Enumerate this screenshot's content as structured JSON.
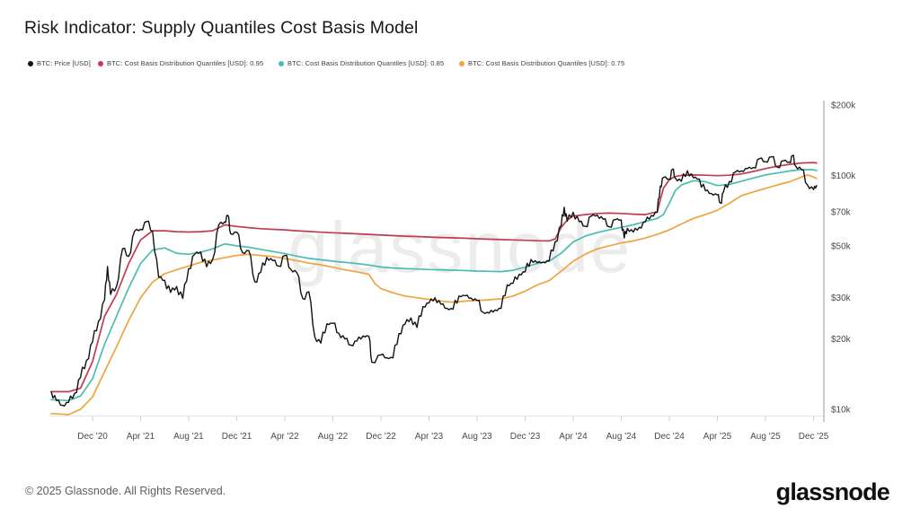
{
  "header": {
    "title": "Risk Indicator: Supply Quantiles Cost Basis Model"
  },
  "legend": [
    {
      "label": "BTC: Price [USD]",
      "color": "#111111"
    },
    {
      "label": "BTC: Cost Basis Distribution Quantiles [USD]: 0.95",
      "color": "#c13b54"
    },
    {
      "label": "BTC: Cost Basis Distribution Quantiles [USD]: 0.85",
      "color": "#4abdb0"
    },
    {
      "label": "BTC: Cost Basis Distribution Quantiles [USD]: 0.75",
      "color": "#f0a33f"
    }
  ],
  "watermark": "glassnode",
  "footer": {
    "copyright": "© 2025 Glassnode. All Rights Reserved.",
    "brand": "glassnode"
  },
  "chart_data": {
    "type": "line",
    "title": "Risk Indicator: Supply Quantiles Cost Basis Model",
    "y_axis": {
      "scale": "log",
      "unit": "USD (thousands)",
      "min": 10,
      "max": 200,
      "position": "right",
      "ticks": [
        {
          "label": "$200k",
          "value": 200
        },
        {
          "label": "$100k",
          "value": 100
        },
        {
          "label": "$70k",
          "value": 70
        },
        {
          "label": "$50k",
          "value": 50
        },
        {
          "label": "$30k",
          "value": 30
        },
        {
          "label": "$20k",
          "value": 20
        },
        {
          "label": "$10k",
          "value": 10
        }
      ]
    },
    "x_axis": {
      "unit": "date (decimal year)",
      "ticks": [
        {
          "label": "Dec '20",
          "year": 2020.917
        },
        {
          "label": "Apr '21",
          "year": 2021.25
        },
        {
          "label": "Aug '21",
          "year": 2021.583
        },
        {
          "label": "Dec '21",
          "year": 2021.917
        },
        {
          "label": "Apr '22",
          "year": 2022.25
        },
        {
          "label": "Aug '22",
          "year": 2022.583
        },
        {
          "label": "Dec '22",
          "year": 2022.917
        },
        {
          "label": "Apr '23",
          "year": 2023.25
        },
        {
          "label": "Aug '23",
          "year": 2023.583
        },
        {
          "label": "Dec '23",
          "year": 2023.917
        },
        {
          "label": "Apr '24",
          "year": 2024.25
        },
        {
          "label": "Aug '24",
          "year": 2024.583
        },
        {
          "label": "Dec '24",
          "year": 2024.917
        },
        {
          "label": "Apr '25",
          "year": 2025.25
        },
        {
          "label": "Aug '25",
          "year": 2025.583
        },
        {
          "label": "Dec '25",
          "year": 2025.917
        }
      ]
    },
    "grid": false,
    "legend_position": "top",
    "series": [
      {
        "name": "BTC: Price [USD]",
        "color": "#111111",
        "style": "jagged",
        "width": 1.4,
        "x": [
          2020.63,
          2020.667,
          2020.708,
          2020.75,
          2020.792,
          2020.833,
          2020.875,
          2020.917,
          2020.958,
          2021.0,
          2021.021,
          2021.042,
          2021.083,
          2021.125,
          2021.167,
          2021.208,
          2021.25,
          2021.292,
          2021.333,
          2021.375,
          2021.417,
          2021.458,
          2021.5,
          2021.542,
          2021.583,
          2021.625,
          2021.667,
          2021.708,
          2021.75,
          2021.792,
          2021.833,
          2021.854,
          2021.875,
          2021.917,
          2021.958,
          2022.0,
          2022.042,
          2022.083,
          2022.125,
          2022.167,
          2022.208,
          2022.25,
          2022.292,
          2022.333,
          2022.375,
          2022.417,
          2022.458,
          2022.5,
          2022.542,
          2022.583,
          2022.625,
          2022.667,
          2022.708,
          2022.75,
          2022.792,
          2022.833,
          2022.854,
          2022.917,
          2022.958,
          2023.0,
          2023.042,
          2023.083,
          2023.125,
          2023.167,
          2023.208,
          2023.25,
          2023.292,
          2023.333,
          2023.375,
          2023.417,
          2023.458,
          2023.5,
          2023.542,
          2023.583,
          2023.625,
          2023.667,
          2023.708,
          2023.75,
          2023.792,
          2023.833,
          2023.875,
          2023.917,
          2023.958,
          2024.0,
          2024.042,
          2024.083,
          2024.125,
          2024.167,
          2024.188,
          2024.208,
          2024.25,
          2024.292,
          2024.333,
          2024.375,
          2024.417,
          2024.458,
          2024.5,
          2024.542,
          2024.583,
          2024.604,
          2024.625,
          2024.667,
          2024.708,
          2024.75,
          2024.792,
          2024.833,
          2024.854,
          2024.875,
          2024.917,
          2024.938,
          2024.958,
          2025.0,
          2025.042,
          2025.083,
          2025.125,
          2025.167,
          2025.208,
          2025.25,
          2025.271,
          2025.292,
          2025.333,
          2025.375,
          2025.417,
          2025.458,
          2025.5,
          2025.542,
          2025.583,
          2025.625,
          2025.667,
          2025.708,
          2025.75,
          2025.771,
          2025.792,
          2025.833,
          2025.875,
          2025.917,
          2025.938
        ],
        "values": [
          11.9,
          10.9,
          10.4,
          10.7,
          11.7,
          13.7,
          16.2,
          19.4,
          23.8,
          29.4,
          40.8,
          31.0,
          33.5,
          48.6,
          45.1,
          57.8,
          58.8,
          63.5,
          57.7,
          36.7,
          35.6,
          31.6,
          33.5,
          29.8,
          39.9,
          46.0,
          47.1,
          40.7,
          43.8,
          61.5,
          63.3,
          67.6,
          56.3,
          57.2,
          46.7,
          47.7,
          35.1,
          38.5,
          44.6,
          43.2,
          41.0,
          45.5,
          39.7,
          38.5,
          29.7,
          31.8,
          20.4,
          19.2,
          23.2,
          23.3,
          21.1,
          20.0,
          18.8,
          19.6,
          20.6,
          20.5,
          15.9,
          17.1,
          16.6,
          16.6,
          21.1,
          23.1,
          24.6,
          22.4,
          27.5,
          28.5,
          30.0,
          28.1,
          27.0,
          26.8,
          30.5,
          30.6,
          29.9,
          29.2,
          26.0,
          25.8,
          26.6,
          27.0,
          34.0,
          34.6,
          37.8,
          38.7,
          43.7,
          42.3,
          42.6,
          43.1,
          52.0,
          61.2,
          73.1,
          63.8,
          69.6,
          63.4,
          60.6,
          67.0,
          67.7,
          65.0,
          60.3,
          64.8,
          64.6,
          54.0,
          59.4,
          57.3,
          60.0,
          63.3,
          67.4,
          69.5,
          89.9,
          98.0,
          96.5,
          106.1,
          97.5,
          94.4,
          104.7,
          97.7,
          96.6,
          86.0,
          83.7,
          82.5,
          76.3,
          84.7,
          94.2,
          103.5,
          104.6,
          107.0,
          108.0,
          118.0,
          114.5,
          120.0,
          108.5,
          115.5,
          114.0,
          121.5,
          110.0,
          106.0,
          91.0,
          87.0,
          90.5
        ]
      },
      {
        "name": "BTC: Cost Basis Distribution Quantiles [USD]: 0.95",
        "color": "#c13b54",
        "style": "smooth",
        "width": 1.7,
        "x": [
          2020.63,
          2020.75,
          2020.833,
          2020.917,
          2021.0,
          2021.083,
          2021.167,
          2021.25,
          2021.333,
          2021.417,
          2021.5,
          2021.583,
          2021.667,
          2021.75,
          2021.833,
          2021.917,
          2022.0,
          2022.083,
          2022.167,
          2022.25,
          2022.333,
          2022.417,
          2022.5,
          2022.583,
          2022.667,
          2022.75,
          2022.833,
          2022.917,
          2023.0,
          2023.083,
          2023.167,
          2023.25,
          2023.333,
          2023.417,
          2023.5,
          2023.583,
          2023.667,
          2023.75,
          2023.833,
          2023.917,
          2024.0,
          2024.083,
          2024.125,
          2024.167,
          2024.208,
          2024.25,
          2024.333,
          2024.417,
          2024.5,
          2024.583,
          2024.667,
          2024.75,
          2024.833,
          2024.875,
          2024.917,
          2024.958,
          2025.0,
          2025.083,
          2025.167,
          2025.25,
          2025.333,
          2025.417,
          2025.5,
          2025.583,
          2025.667,
          2025.75,
          2025.833,
          2025.917,
          2025.938
        ],
        "values": [
          11.9,
          11.9,
          12.3,
          16.0,
          25.0,
          31.0,
          42.0,
          53.0,
          58.0,
          58.0,
          57.5,
          57.3,
          57.5,
          58.0,
          61.5,
          60.5,
          59.8,
          59.2,
          58.8,
          58.5,
          58.0,
          57.6,
          57.2,
          56.9,
          56.6,
          56.3,
          56.0,
          55.6,
          55.3,
          55.0,
          54.8,
          54.5,
          54.3,
          54.1,
          53.9,
          53.6,
          53.4,
          53.2,
          53.0,
          52.8,
          52.6,
          52.5,
          53.5,
          60.0,
          64.5,
          67.0,
          68.0,
          68.8,
          69.0,
          68.8,
          68.3,
          68.0,
          70.0,
          88.0,
          96.0,
          99.0,
          100.0,
          100.5,
          100.2,
          99.8,
          100.2,
          101.5,
          104.0,
          107.0,
          109.5,
          111.5,
          113.0,
          113.5,
          113.0
        ]
      },
      {
        "name": "BTC: Cost Basis Distribution Quantiles [USD]: 0.85",
        "color": "#4abdb0",
        "style": "smooth",
        "width": 1.7,
        "x": [
          2020.63,
          2020.75,
          2020.833,
          2020.917,
          2021.0,
          2021.083,
          2021.167,
          2021.25,
          2021.333,
          2021.417,
          2021.5,
          2021.583,
          2021.667,
          2021.75,
          2021.833,
          2021.917,
          2022.0,
          2022.083,
          2022.167,
          2022.25,
          2022.333,
          2022.417,
          2022.5,
          2022.583,
          2022.667,
          2022.75,
          2022.833,
          2022.917,
          2023.0,
          2023.083,
          2023.167,
          2023.25,
          2023.333,
          2023.417,
          2023.5,
          2023.583,
          2023.667,
          2023.75,
          2023.833,
          2023.917,
          2024.0,
          2024.083,
          2024.167,
          2024.25,
          2024.333,
          2024.417,
          2024.5,
          2024.583,
          2024.667,
          2024.75,
          2024.833,
          2024.875,
          2024.917,
          2024.958,
          2025.0,
          2025.083,
          2025.167,
          2025.25,
          2025.333,
          2025.417,
          2025.5,
          2025.583,
          2025.667,
          2025.75,
          2025.833,
          2025.917,
          2025.938
        ],
        "values": [
          11.0,
          10.9,
          11.4,
          13.5,
          19.0,
          25.0,
          33.0,
          42.0,
          48.0,
          49.0,
          46.5,
          46.0,
          47.0,
          48.5,
          51.0,
          50.0,
          49.3,
          48.3,
          47.3,
          46.3,
          45.2,
          44.2,
          43.6,
          43.0,
          42.5,
          42.0,
          41.4,
          40.6,
          40.2,
          40.0,
          39.8,
          39.6,
          39.5,
          39.3,
          39.2,
          39.0,
          38.9,
          38.8,
          39.3,
          40.5,
          42.0,
          43.0,
          46.5,
          52.0,
          55.0,
          57.0,
          58.5,
          60.0,
          61.5,
          63.5,
          65.5,
          68.0,
          76.0,
          86.0,
          91.0,
          95.0,
          94.0,
          90.5,
          91.5,
          94.5,
          97.5,
          100.5,
          102.5,
          104.5,
          106.0,
          105.8,
          104.8
        ]
      },
      {
        "name": "BTC: Cost Basis Distribution Quantiles [USD]: 0.75",
        "color": "#f0a33f",
        "style": "smooth",
        "width": 1.7,
        "x": [
          2020.63,
          2020.75,
          2020.833,
          2020.917,
          2021.0,
          2021.083,
          2021.167,
          2021.25,
          2021.333,
          2021.417,
          2021.5,
          2021.583,
          2021.667,
          2021.75,
          2021.833,
          2021.917,
          2022.0,
          2022.083,
          2022.167,
          2022.25,
          2022.333,
          2022.417,
          2022.5,
          2022.583,
          2022.667,
          2022.75,
          2022.833,
          2022.875,
          2022.917,
          2023.0,
          2023.083,
          2023.167,
          2023.25,
          2023.333,
          2023.417,
          2023.5,
          2023.583,
          2023.667,
          2023.75,
          2023.833,
          2023.917,
          2024.0,
          2024.083,
          2024.167,
          2024.25,
          2024.333,
          2024.417,
          2024.5,
          2024.583,
          2024.667,
          2024.75,
          2024.833,
          2024.917,
          2025.0,
          2025.083,
          2025.167,
          2025.25,
          2025.333,
          2025.417,
          2025.5,
          2025.583,
          2025.667,
          2025.75,
          2025.833,
          2025.875,
          2025.917,
          2025.938
        ],
        "values": [
          9.6,
          9.5,
          10.0,
          11.3,
          14.5,
          18.5,
          24.0,
          30.0,
          35.0,
          38.0,
          39.5,
          41.0,
          42.5,
          43.5,
          44.5,
          45.5,
          46.0,
          45.5,
          45.0,
          44.2,
          43.2,
          42.2,
          41.5,
          40.5,
          39.5,
          38.7,
          37.8,
          34.5,
          32.8,
          31.5,
          30.5,
          30.0,
          29.5,
          29.0,
          28.7,
          29.0,
          29.2,
          29.4,
          29.7,
          30.5,
          32.0,
          34.0,
          35.5,
          39.0,
          43.0,
          46.0,
          48.5,
          50.0,
          51.5,
          52.5,
          54.0,
          56.0,
          58.5,
          62.0,
          65.5,
          68.0,
          71.0,
          76.0,
          82.0,
          85.0,
          88.0,
          91.0,
          94.0,
          98.5,
          100.5,
          98.5,
          97.0
        ]
      }
    ]
  }
}
